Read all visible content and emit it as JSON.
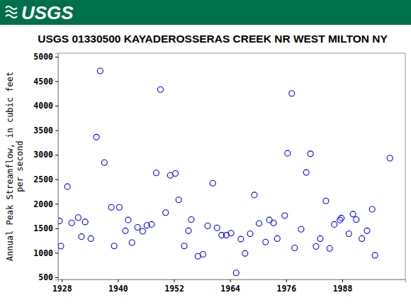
{
  "logo": "USGS",
  "chart_data": {
    "type": "scatter",
    "title": "USGS 01330500 KAYADEROSSERAS CREEK NR WEST MILTON NY",
    "ylabel": "Annual Peak Streamflow, in cubic feet per second",
    "x": [
      1927.5,
      1927.8,
      1929.2,
      1930.1,
      1931.5,
      1932.2,
      1933.0,
      1934.2,
      1935.4,
      1936.2,
      1937.1,
      1938.6,
      1939.2,
      1940.3,
      1941.6,
      1942.2,
      1943.0,
      1944.2,
      1945.3,
      1946.2,
      1947.2,
      1948.2,
      1949.1,
      1950.2,
      1951.2,
      1952.3,
      1953.0,
      1954.2,
      1955.1,
      1955.7,
      1957.1,
      1958.2,
      1959.2,
      1960.3,
      1961.2,
      1962.2,
      1963.2,
      1964.2,
      1965.3,
      1966.3,
      1967.2,
      1968.3,
      1969.2,
      1970.2,
      1971.6,
      1972.4,
      1973.3,
      1974.1,
      1975.7,
      1976.3,
      1977.2,
      1977.8,
      1979.2,
      1980.3,
      1981.2,
      1982.4,
      1983.3,
      1984.5,
      1985.3,
      1986.3,
      1987.5,
      1987.8,
      1989.4,
      1990.3,
      1991.0,
      1992.2,
      1993.3,
      1994.4,
      1995.0,
      1998.2
    ],
    "values": [
      1649,
      1137,
      2350,
      1610,
      1720,
      1330,
      1630,
      1290,
      3360,
      4710,
      2840,
      1930,
      1140,
      1930,
      1450,
      1670,
      1210,
      1520,
      1440,
      1560,
      1580,
      2630,
      4330,
      1820,
      2580,
      2620,
      2080,
      1140,
      1450,
      1680,
      930,
      970,
      1550,
      2420,
      1510,
      1360,
      1360,
      1400,
      590,
      1280,
      990,
      1390,
      2180,
      1600,
      1220,
      1670,
      1610,
      1290,
      1760,
      3030,
      4250,
      1100,
      1480,
      2640,
      3020,
      1130,
      1290,
      2060,
      1090,
      1580,
      1670,
      1710,
      1390,
      1790,
      1680,
      1290,
      1450,
      1890,
      950,
      2930
    ],
    "color": "#0000ff",
    "marker": "open-circle",
    "xlim": [
      1927.2,
      2001.5
    ],
    "xticks": [
      1928,
      1940,
      1952,
      1964,
      1976,
      1988
    ],
    "ylim": [
      457,
      5072
    ],
    "yticks": [
      500,
      1000,
      1500,
      2000,
      2500,
      3000,
      3500,
      4000,
      4500,
      5000
    ],
    "grid": false
  }
}
